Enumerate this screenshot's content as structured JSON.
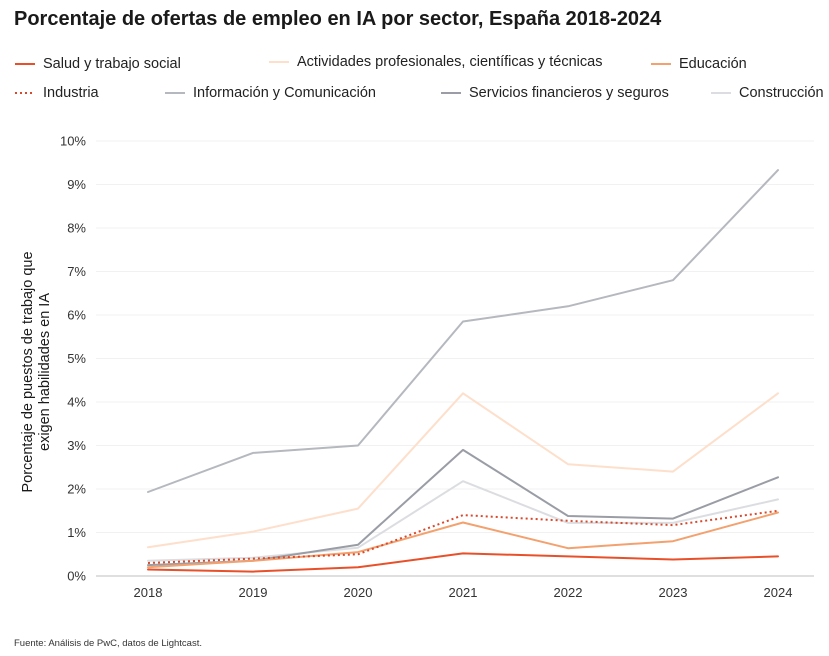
{
  "header": {
    "title": "Porcentaje de ofertas de empleo en IA por sector, España 2018-2024"
  },
  "footer": {
    "source": "Fuente: Análisis de PwC, datos de Lightcast."
  },
  "chart_data": {
    "type": "line",
    "title": "Porcentaje de ofertas de empleo en IA por sector, España 2018-2024",
    "xlabel": "",
    "ylabel_lines": [
      "Porcentaje de puestos de trabajo que",
      "exigen habilidades en IA"
    ],
    "categories": [
      "2018",
      "2019",
      "2020",
      "2021",
      "2022",
      "2023",
      "2024"
    ],
    "ylim": [
      0,
      10
    ],
    "yticks": [
      0,
      1,
      2,
      3,
      4,
      5,
      6,
      7,
      8,
      9,
      10
    ],
    "ytick_labels": [
      "0%",
      "1%",
      "2%",
      "3%",
      "4%",
      "5%",
      "6%",
      "7%",
      "8%",
      "9%",
      "10%"
    ],
    "legend_position": "top",
    "series": [
      {
        "name": "Salud y trabajo social",
        "color": "#E8502A",
        "dash": "solid",
        "values": [
          0.15,
          0.1,
          0.2,
          0.52,
          0.45,
          0.38,
          0.45
        ]
      },
      {
        "name": "Actividades profesionales, científicas y técnicas",
        "color": "#FDDFCB",
        "dash": "solid",
        "values": [
          0.66,
          1.02,
          1.55,
          4.2,
          2.57,
          2.4,
          4.2
        ]
      },
      {
        "name": "Educación",
        "color": "#F2A16F",
        "dash": "solid",
        "values": [
          0.2,
          0.35,
          0.55,
          1.23,
          0.64,
          0.8,
          1.46
        ]
      },
      {
        "name": "Industria",
        "color": "#D9482B",
        "dash": "dotted",
        "values": [
          0.3,
          0.4,
          0.5,
          1.4,
          1.27,
          1.17,
          1.5
        ]
      },
      {
        "name": "Información y Comunicación",
        "color": "#B5B8BE",
        "dash": "solid",
        "values": [
          1.93,
          2.83,
          3.0,
          5.85,
          6.2,
          6.8,
          9.33
        ]
      },
      {
        "name": "Servicios financieros y seguros",
        "color": "#9A9DA5",
        "dash": "solid",
        "values": [
          0.25,
          0.35,
          0.72,
          2.9,
          1.38,
          1.32,
          2.27
        ]
      },
      {
        "name": "Construcción",
        "color": "#DCDDE0",
        "dash": "solid",
        "values": [
          0.35,
          0.42,
          0.65,
          2.18,
          1.22,
          1.22,
          1.76
        ]
      }
    ]
  }
}
